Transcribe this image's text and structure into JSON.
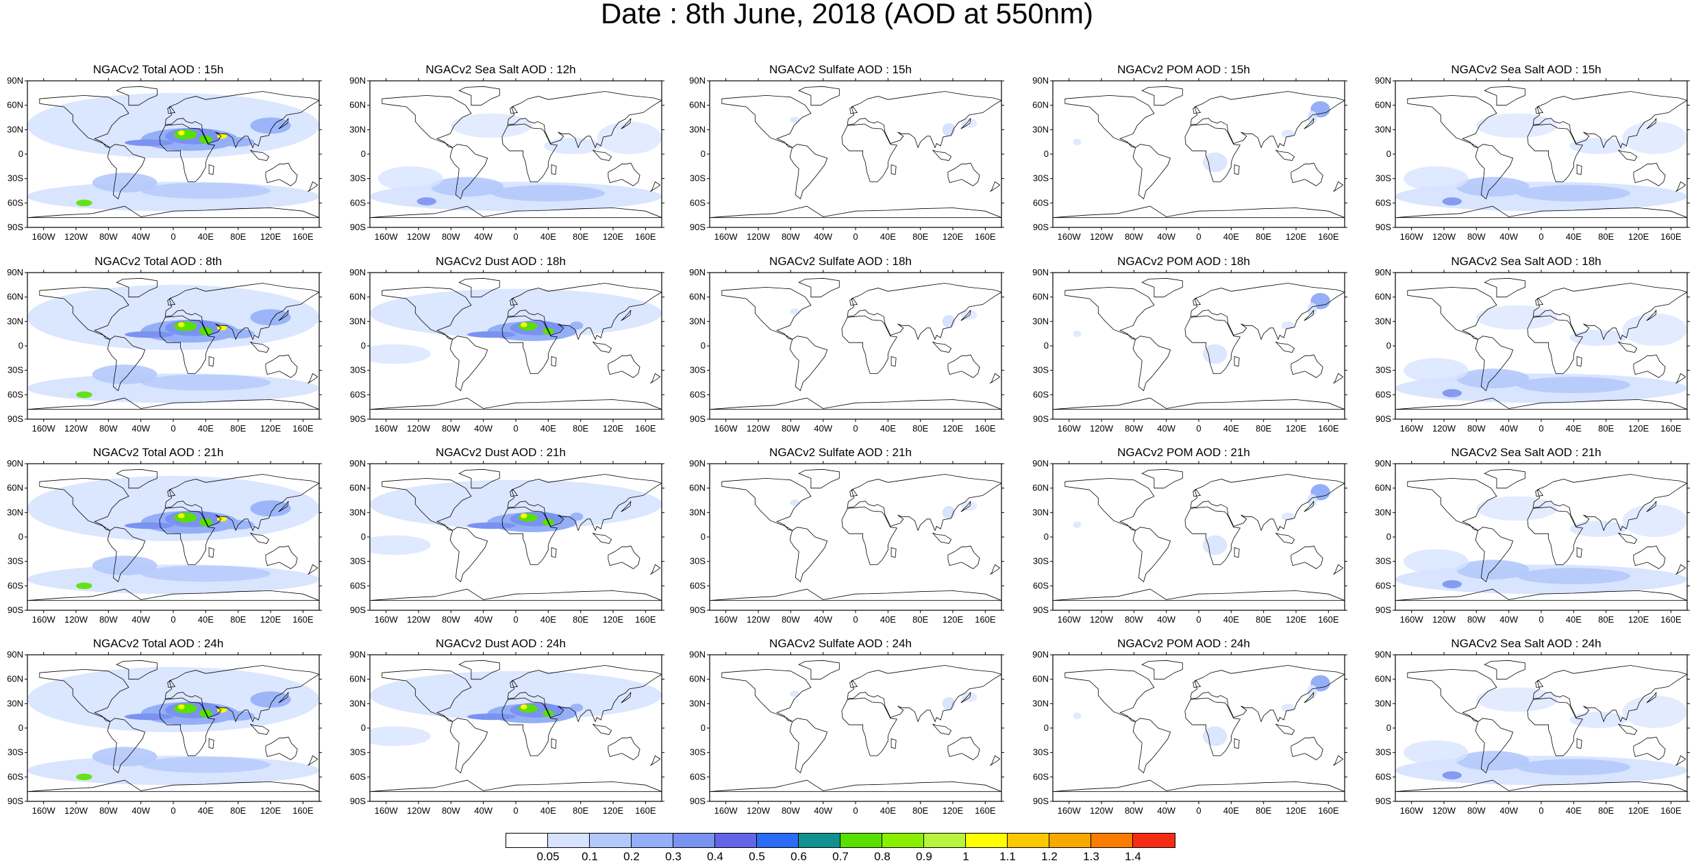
{
  "title": "Date : 8th June, 2018 (AOD at 550nm)",
  "panels": [
    [
      "NGACv2 Total AOD : 15h",
      "NGACv2 Sea Salt  AOD : 12h",
      "NGACv2 Sulfate AOD : 15h",
      "NGACv2 POM AOD : 15h",
      "NGACv2 Sea Salt AOD : 15h"
    ],
    [
      "NGACv2 Total AOD : 8th",
      "NGACv2 Dust AOD : 18h",
      "NGACv2 Sulfate AOD : 18h",
      "NGACv2 POM AOD : 18h",
      "NGACv2 Sea Salt AOD : 18h"
    ],
    [
      "NGACv2 Total AOD : 21h",
      "NGACv2 Dust AOD : 21h",
      "NGACv2 Sulfate AOD : 21h",
      "NGACv2 POM AOD : 21h",
      "NGACv2 Sea Salt AOD : 21h"
    ],
    [
      "NGACv2 Total AOD : 24h",
      "NGACv2 Dust AOD : 24h",
      "NGACv2 Sulfate AOD : 24h",
      "NGACv2 POM AOD : 24h",
      "NGACv2 Sea Salt  AOD : 24h"
    ]
  ],
  "lat_labels": [
    "90N",
    "60N",
    "30N",
    "0",
    "30S",
    "60S",
    "90S"
  ],
  "lon_labels": [
    "160W",
    "120W",
    "80W",
    "40W",
    "0",
    "40E",
    "80E",
    "120E",
    "160E"
  ],
  "colorbar": {
    "labels": [
      "0.05",
      "0.1",
      "0.2",
      "0.3",
      "0.4",
      "0.5",
      "0.6",
      "0.7",
      "0.8",
      "0.9",
      "1",
      "1.1",
      "1.2",
      "1.3",
      "1.4"
    ],
    "colors": [
      "#ffffff",
      "#d7e3ff",
      "#b4c9fb",
      "#94aff7",
      "#7a92f0",
      "#6464e8",
      "#2a6cf5",
      "#10918f",
      "#58e000",
      "#8aee00",
      "#b8f43c",
      "#ffff00",
      "#fcc800",
      "#f9a800",
      "#f97c00",
      "#f52c14"
    ]
  },
  "maps": {
    "land_color": "#000000",
    "aerosol_field_colors": {
      "dust_low": "#94aff7",
      "dust_mid": "#7a92f0",
      "dust_high": "#58e000",
      "dust_peak": "#ffff00",
      "sea_salt": "#b4c9fb",
      "background": "#d7e3ff",
      "pom": "#94aff7"
    }
  }
}
